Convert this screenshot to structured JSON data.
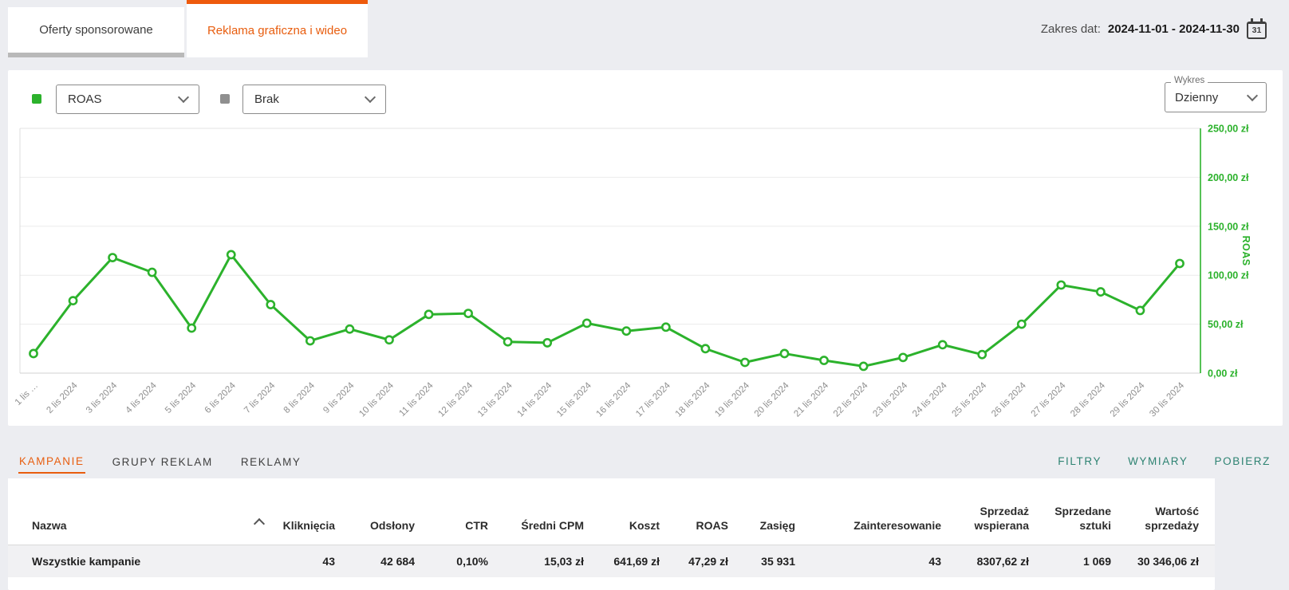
{
  "colors": {
    "accent_orange": "#e85d0e",
    "chart_green": "#2cb22c",
    "teal_action": "#2e8372",
    "indicator_gray": "#8f8f8f"
  },
  "header": {
    "tabs": [
      {
        "label": "Oferty sponsorowane",
        "active": false
      },
      {
        "label": "Reklama graficzna i wideo",
        "active": true
      }
    ],
    "date_range": {
      "label": "Zakres dat:",
      "value": "2024-11-01 - 2024-11-30",
      "calendar_day": "31"
    }
  },
  "controls": {
    "metric_primary": {
      "value": "ROAS",
      "indicator_color": "#2cb22c"
    },
    "metric_secondary": {
      "value": "Brak",
      "indicator_color": "#8f8f8f"
    },
    "chart_mode": {
      "label": "Wykres",
      "value": "Dzienny"
    }
  },
  "chart_data": {
    "type": "line",
    "x_labels": [
      "1 lis …",
      "2 lis 2024",
      "3 lis 2024",
      "4 lis 2024",
      "5 lis 2024",
      "6 lis 2024",
      "7 lis 2024",
      "8 lis 2024",
      "9 lis 2024",
      "10 lis 2024",
      "11 lis 2024",
      "12 lis 2024",
      "13 lis 2024",
      "14 lis 2024",
      "15 lis 2024",
      "16 lis 2024",
      "17 lis 2024",
      "18 lis 2024",
      "19 lis 2024",
      "20 lis 2024",
      "21 lis 2024",
      "22 lis 2024",
      "23 lis 2024",
      "24 lis 2024",
      "25 lis 2024",
      "26 lis 2024",
      "27 lis 2024",
      "28 lis 2024",
      "29 lis 2024",
      "30 lis 2024"
    ],
    "series": [
      {
        "name": "ROAS",
        "color": "#2cb22c",
        "values": [
          20,
          74,
          118,
          103,
          46,
          121,
          70,
          33,
          45,
          34,
          60,
          61,
          32,
          31,
          51,
          43,
          47,
          25,
          11,
          20,
          13,
          7,
          16,
          29,
          19,
          50,
          90,
          83,
          64,
          112
        ]
      }
    ],
    "y_axis": {
      "label": "ROAS",
      "min": 0,
      "max": 250,
      "side": "right",
      "color": "#2cb22c",
      "ticks": [
        "0,00 zł",
        "50,00 zł",
        "100,00 zł",
        "150,00 zł",
        "200,00 zł",
        "250,00 zł"
      ]
    },
    "grid": true,
    "legend": "none"
  },
  "table_section": {
    "tabs": [
      {
        "label": "KAMPANIE",
        "active": true
      },
      {
        "label": "GRUPY REKLAM",
        "active": false
      },
      {
        "label": "REKLAMY",
        "active": false
      }
    ],
    "actions": [
      "FILTRY",
      "WYMIARY",
      "POBIERZ"
    ],
    "table": {
      "columns": [
        "Nazwa",
        "Kliknięcia",
        "Odsłony",
        "CTR",
        "Średni CPM",
        "Koszt",
        "ROAS",
        "Zasięg",
        "Zainteresowanie",
        "Sprzedaż wspierana",
        "Sprzedane sztuki",
        "Wartość sprzedaży"
      ],
      "sort": {
        "column": "Nazwa",
        "direction": "asc"
      },
      "rows": [
        {
          "name": "Wszystkie kampanie",
          "values": [
            "43",
            "42 684",
            "0,10%",
            "15,03 zł",
            "641,69 zł",
            "47,29 zł",
            "35 931",
            "43",
            "8307,62 zł",
            "1 069",
            "30 346,06 zł"
          ]
        }
      ]
    }
  }
}
